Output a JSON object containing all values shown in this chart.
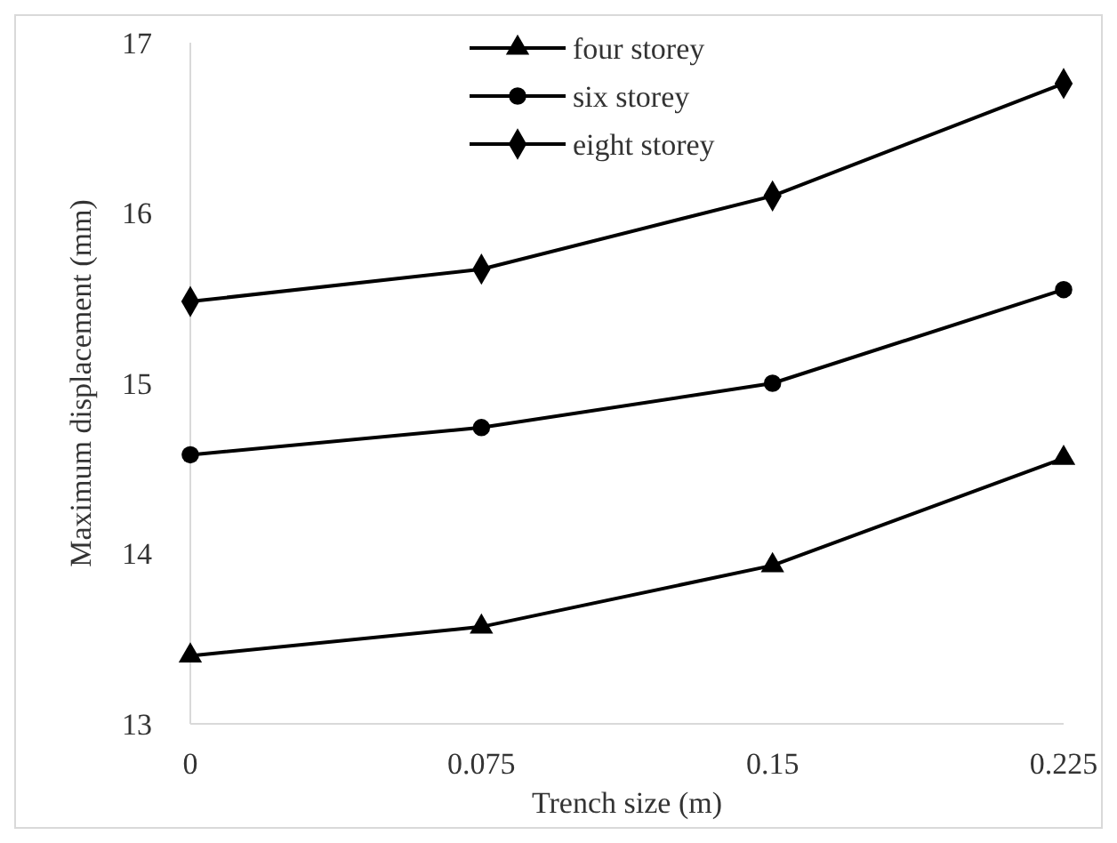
{
  "chart_data": {
    "type": "line",
    "xlabel": "Trench size (m)",
    "ylabel": "Maximum displacement (mm)",
    "categories": [
      "0",
      "0.075",
      "0.15",
      "0.225"
    ],
    "series": [
      {
        "name": "four storey",
        "color": "#000000",
        "marker": "triangle",
        "values": [
          13.4,
          13.57,
          13.93,
          14.56
        ]
      },
      {
        "name": "six storey",
        "color": "#000000",
        "marker": "circle",
        "values": [
          14.58,
          14.74,
          15.0,
          15.55
        ]
      },
      {
        "name": "eight storey",
        "color": "#000000",
        "marker": "diamond",
        "values": [
          15.48,
          15.67,
          16.1,
          16.76
        ]
      }
    ],
    "ylim": [
      13,
      17
    ],
    "yticks": [
      13,
      14,
      15,
      16,
      17
    ],
    "grid": false,
    "legend": "top",
    "line_style": "solid"
  }
}
